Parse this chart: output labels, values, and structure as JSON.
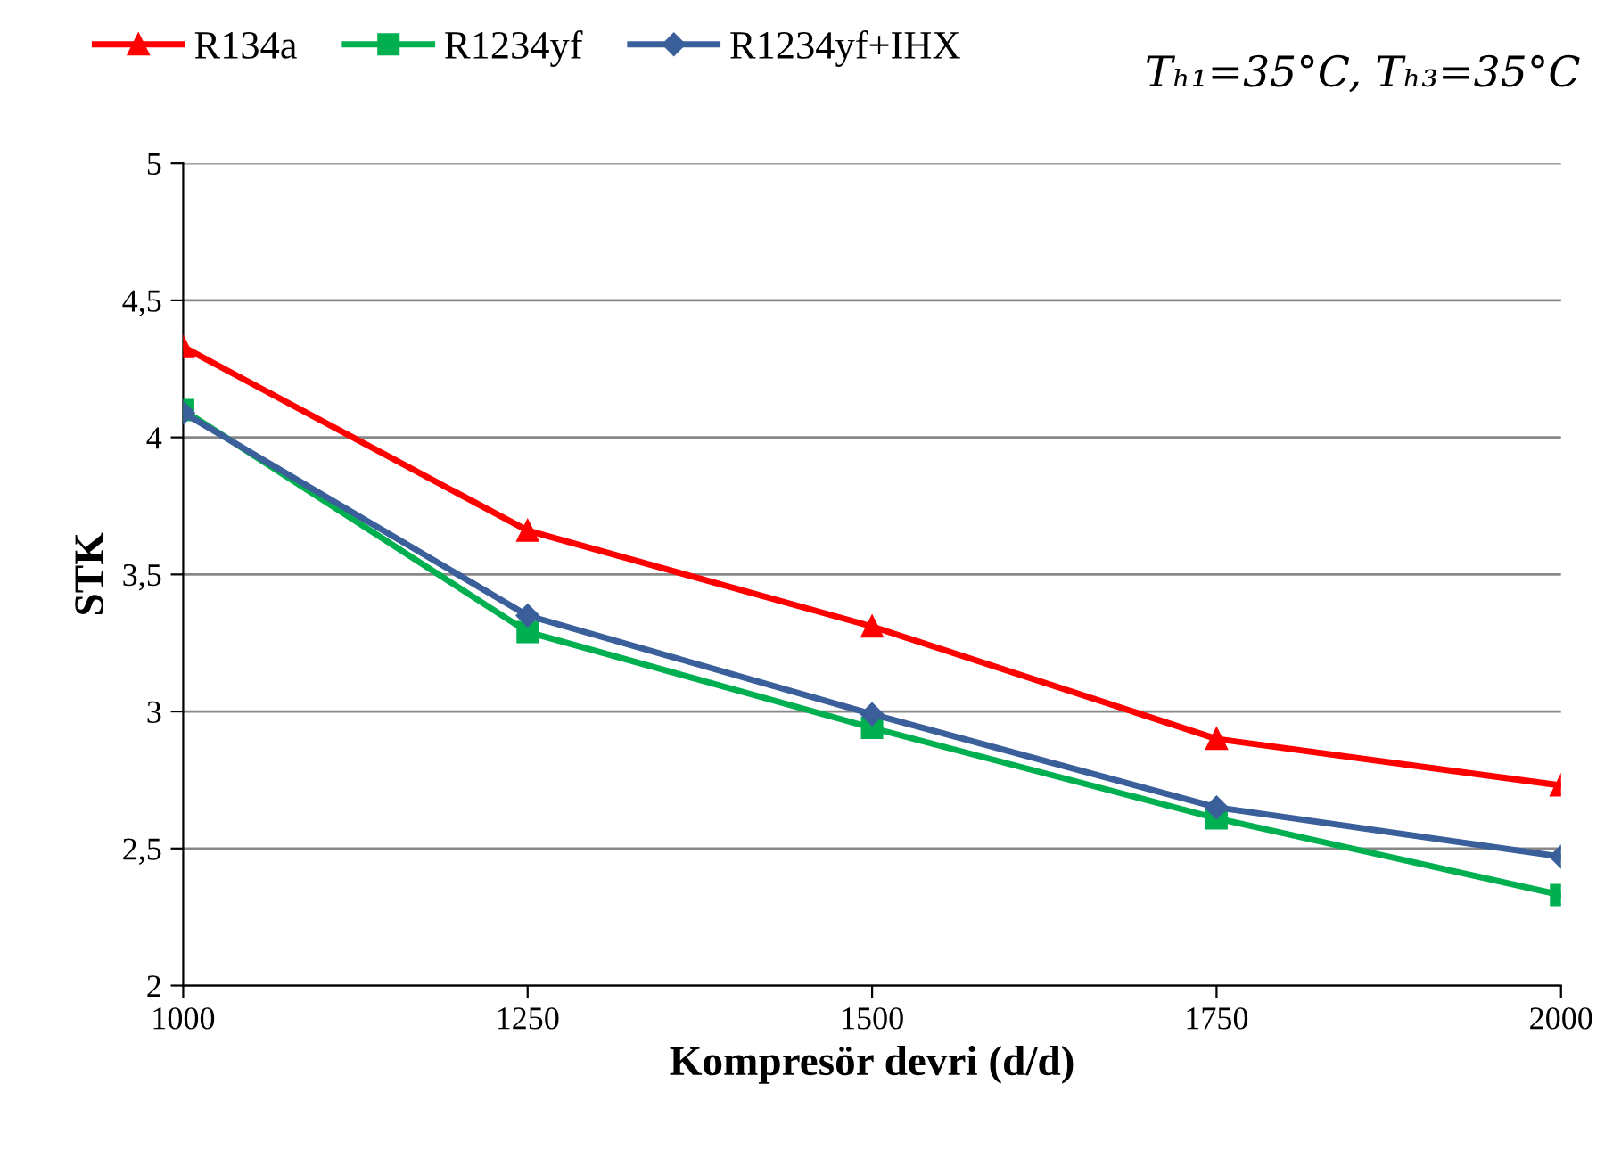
{
  "chart_data": {
    "type": "line",
    "xlabel": "Kompresör devri (d/d)",
    "ylabel": "STK",
    "x": [
      1000,
      1250,
      1500,
      1750,
      2000
    ],
    "series": [
      {
        "name": "R134a",
        "color": "#ff0000",
        "marker": "triangle",
        "values": [
          4.33,
          3.66,
          3.31,
          2.9,
          2.73
        ]
      },
      {
        "name": "R1234yf",
        "color": "#00b050",
        "marker": "square",
        "values": [
          4.1,
          3.29,
          2.94,
          2.61,
          2.33
        ]
      },
      {
        "name": "R1234yf+IHX",
        "color": "#3a5f9a",
        "marker": "diamond",
        "values": [
          4.09,
          3.35,
          2.99,
          2.65,
          2.47
        ]
      }
    ],
    "xlim": [
      1000,
      2000
    ],
    "xticks": [
      1000,
      1250,
      1500,
      1750,
      2000
    ],
    "ylim": [
      2,
      5
    ],
    "yticks": [
      2,
      {
        "value": 2.5,
        "label": "2,5"
      },
      3,
      {
        "value": 3.5,
        "label": "3,5"
      },
      4,
      {
        "value": 4.5,
        "label": "4,5"
      },
      5
    ],
    "grid": "y",
    "legend": "top",
    "line_style": "solid",
    "annotations": [
      "Tₕ₁=35°C, Tₕ₃=35°C"
    ]
  }
}
